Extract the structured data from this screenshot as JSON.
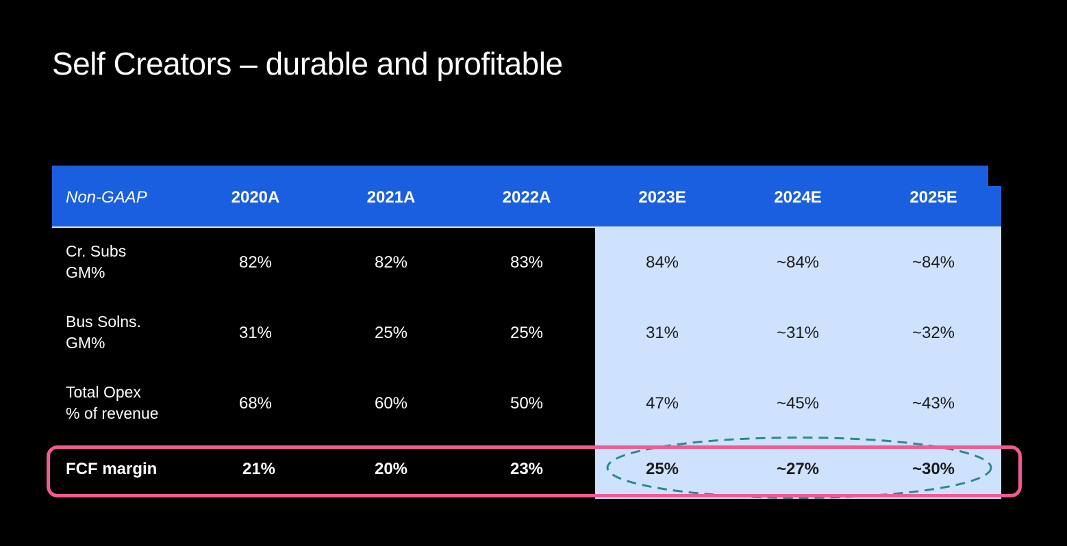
{
  "slide": {
    "title": "Self Creators – durable and profitable"
  },
  "table": {
    "header_label": "Non-GAAP",
    "columns": [
      "2020A",
      "2021A",
      "2022A",
      "2023E",
      "2024E",
      "2025E"
    ],
    "rows": [
      {
        "label_line1": "Cr. Subs",
        "label_line2": "GM%",
        "values": [
          "82%",
          "82%",
          "83%",
          "84%",
          "~84%",
          "~84%"
        ]
      },
      {
        "label_line1": "Bus Solns.",
        "label_line2": "GM%",
        "values": [
          "31%",
          "25%",
          "25%",
          "31%",
          "~31%",
          "~32%"
        ]
      },
      {
        "label_line1": "Total Opex",
        "label_line2": "% of revenue",
        "values": [
          "68%",
          "60%",
          "50%",
          "47%",
          "~45%",
          "~43%"
        ]
      }
    ],
    "fcf_row": {
      "label": "FCF margin",
      "values": [
        "21%",
        "20%",
        "23%",
        "25%",
        "~27%",
        "~30%"
      ]
    }
  },
  "colors": {
    "header_blue": "#1a5fe0",
    "forecast_panel": "#cfe2fd",
    "highlight_pink": "#ef5b93",
    "oval_teal": "#2a8a86"
  }
}
